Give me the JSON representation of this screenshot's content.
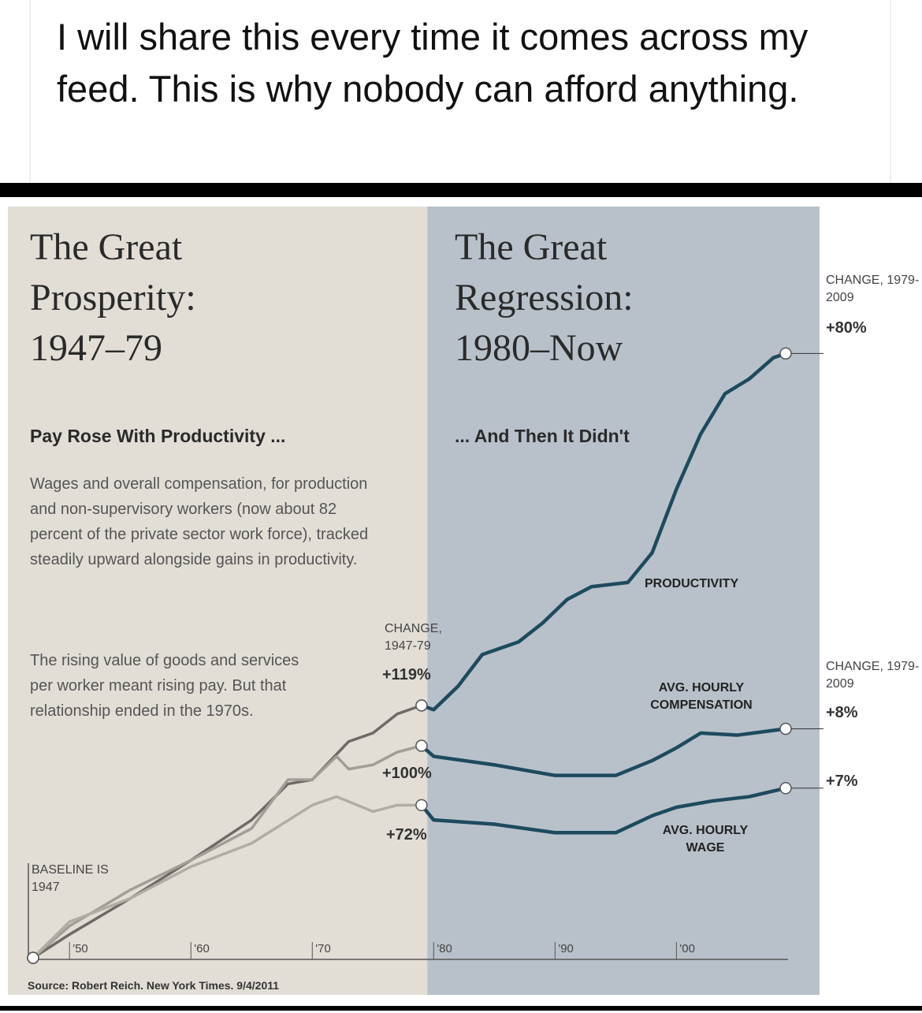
{
  "post": {
    "text": "I will share this every time it comes across my feed. This is why nobody can afford anything."
  },
  "chart_data": {
    "type": "line",
    "left_title": [
      "The Great",
      "Prosperity:",
      "1947–79"
    ],
    "right_title": [
      "The Great",
      "Regression:",
      "1980–Now"
    ],
    "left_heading": "Pay Rose With Productivity ...",
    "right_heading": "... And Then It Didn't",
    "paragraphs": [
      "Wages and overall compensation, for production and non-supervisory workers (now about 82 percent of the private sector work force), tracked steadily upward alongside gains in productivity.",
      "The rising value of goods and services per worker meant rising pay. But that relationship ended in the 1970s."
    ],
    "baseline_note": "BASELINE IS 1947",
    "source": "Source: Robert Reich. New York Times. 9/4/2011",
    "change_1947_79": {
      "heading": "CHANGE, 1947-79",
      "labels": [
        "+119%",
        "+100%",
        "+72%"
      ]
    },
    "change_1979_2009": {
      "heading": "CHANGE, 1979-2009",
      "labels": [
        "+80%",
        "+8%",
        "+7%"
      ]
    },
    "shaded_from": 1980,
    "xlim": [
      1947,
      2009
    ],
    "ylim": [
      0,
      300
    ],
    "xticks": [
      {
        "value": 1950,
        "label": "'50"
      },
      {
        "value": 1960,
        "label": "'60"
      },
      {
        "value": 1970,
        "label": "'70"
      },
      {
        "value": 1980,
        "label": "'80"
      },
      {
        "value": 1990,
        "label": "'90"
      },
      {
        "value": 2000,
        "label": "'00"
      }
    ],
    "series": [
      {
        "name": "PRODUCTIVITY",
        "color": "#1e4a5f",
        "color_before_1980": "#6e6a65",
        "x": [
          1947,
          1950,
          1955,
          1960,
          1965,
          1968,
          1970,
          1973,
          1975,
          1977,
          1979,
          1980,
          1982,
          1984,
          1987,
          1989,
          1991,
          1993,
          1996,
          1998,
          2000,
          2002,
          2004,
          2006,
          2008,
          2009
        ],
        "values": [
          0,
          11,
          28,
          46,
          65,
          82,
          84,
          102,
          106,
          115,
          119,
          117,
          128,
          143,
          149,
          158,
          169,
          175,
          177,
          191,
          221,
          247,
          266,
          273,
          283,
          285
        ]
      },
      {
        "name": "AVG. HOURLY COMPENSATION",
        "color": "#1e4a5f",
        "color_before_1980": "#a29d95",
        "x": [
          1947,
          1950,
          1955,
          1960,
          1965,
          1968,
          1970,
          1972,
          1973,
          1975,
          1977,
          1979,
          1980,
          1985,
          1990,
          1995,
          1998,
          2000,
          2002,
          2005,
          2009
        ],
        "values": [
          0,
          15,
          32,
          46,
          61,
          84,
          84,
          95,
          89,
          91,
          97,
          100,
          95,
          91,
          86,
          86,
          93,
          99,
          106,
          105,
          108
        ]
      },
      {
        "name": "AVG. HOURLY WAGE",
        "color": "#1e4a5f",
        "color_before_1980": "#b2aca2",
        "x": [
          1947,
          1950,
          1955,
          1960,
          1965,
          1970,
          1972,
          1975,
          1977,
          1979,
          1980,
          1985,
          1990,
          1995,
          1998,
          2000,
          2003,
          2006,
          2009
        ],
        "values": [
          0,
          17,
          28,
          43,
          54,
          72,
          76,
          69,
          72,
          72,
          65,
          63,
          59,
          59,
          67,
          71,
          74,
          76,
          80
        ]
      }
    ]
  }
}
